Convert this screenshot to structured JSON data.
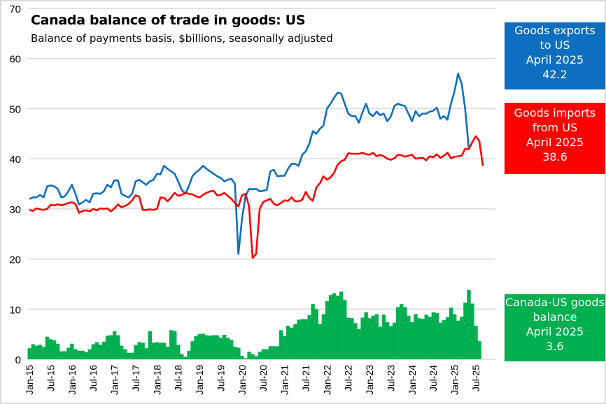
{
  "chart_data": {
    "type": "line+bar",
    "title": "Canada balance of trade in goods: US",
    "subtitle": "Balance of payments basis, $billions, seasonally adjusted",
    "xlabel": "",
    "ylabel": "",
    "ylim": [
      0,
      70
    ],
    "yticks": [
      0,
      10,
      20,
      30,
      40,
      50,
      60,
      70
    ],
    "grid": true,
    "x_start": "Jan-2015",
    "x_end": "Apr-2025",
    "xlim_months": [
      "Jan-2015",
      "Jul-2025"
    ],
    "xtick_labels": [
      "Jan-15",
      "Jul-15",
      "Jan-16",
      "Jul-16",
      "Jan-17",
      "Jul-17",
      "Jan-18",
      "Jul-18",
      "Jan-19",
      "Jul-19",
      "Jan-20",
      "Jul-20",
      "Jan-21",
      "Jul-21",
      "Jan-22",
      "Jul-22",
      "Jan-23",
      "Jul-23",
      "Jan-24",
      "Jul-24",
      "Jan-25",
      "Jul-25"
    ],
    "series": [
      {
        "name": "Goods exports to US",
        "type": "line",
        "color": "#0e6fc1",
        "values": [
          32.0,
          32.3,
          32.3,
          32.8,
          32.3,
          34.5,
          34.7,
          34.5,
          34.0,
          32.3,
          32.5,
          33.5,
          34.8,
          33.0,
          30.9,
          31.3,
          31.8,
          31.3,
          33.0,
          33.1,
          33.0,
          33.5,
          34.8,
          34.3,
          35.7,
          35.7,
          33.0,
          32.6,
          32.3,
          33.0,
          35.5,
          35.8,
          35.3,
          34.8,
          35.5,
          35.8,
          37.0,
          36.9,
          38.6,
          38.0,
          37.5,
          37.0,
          35.5,
          33.8,
          33.0,
          34.5,
          36.5,
          37.3,
          37.8,
          38.6,
          38.0,
          37.5,
          37.0,
          36.5,
          36.2,
          35.5,
          35.8,
          36.0,
          35.0,
          21.0,
          28.0,
          32.5,
          34.0,
          33.9,
          34.0,
          33.5,
          33.6,
          33.8,
          37.5,
          37.8,
          36.5,
          36.6,
          36.6,
          38.0,
          39.0,
          39.0,
          38.6,
          40.8,
          41.5,
          43.0,
          45.5,
          45.0,
          46.0,
          46.6,
          50.0,
          51.0,
          52.2,
          53.2,
          53.0,
          51.0,
          49.0,
          48.5,
          48.5,
          47.2,
          49.2,
          51.0,
          49.0,
          48.5,
          49.4,
          48.7,
          49.0,
          47.5,
          48.4,
          50.5,
          51.0,
          50.7,
          50.5,
          49.0,
          47.5,
          49.5,
          48.5,
          49.0,
          49.0,
          49.4,
          49.6,
          50.2,
          48.0,
          48.5,
          47.8,
          51.0,
          53.5,
          57.0,
          55.0,
          50.0,
          42.2
        ]
      },
      {
        "name": "Goods imports from US",
        "type": "line",
        "color": "#ff0000",
        "values": [
          29.8,
          29.6,
          30.1,
          29.9,
          29.8,
          30.0,
          30.8,
          30.7,
          30.9,
          30.7,
          30.9,
          31.2,
          31.3,
          31.0,
          29.2,
          29.6,
          29.7,
          29.5,
          30.0,
          29.7,
          30.1,
          30.0,
          30.1,
          29.5,
          30.1,
          30.9,
          30.3,
          30.6,
          31.0,
          31.7,
          32.7,
          32.4,
          29.8,
          29.8,
          29.9,
          29.8,
          30.0,
          32.3,
          32.2,
          31.5,
          32.3,
          33.2,
          32.6,
          32.8,
          33.2,
          33.0,
          32.9,
          32.5,
          32.3,
          32.8,
          33.2,
          33.5,
          33.6,
          32.7,
          32.8,
          33.2,
          32.6,
          32.0,
          31.2,
          30.5,
          32.7,
          33.0,
          30.5,
          20.2,
          21.0,
          30.0,
          31.4,
          31.7,
          32.0,
          31.0,
          30.7,
          31.2,
          31.7,
          31.6,
          32.3,
          31.5,
          31.5,
          31.8,
          33.4,
          32.2,
          31.6,
          34.3,
          35.1,
          36.5,
          35.8,
          36.3,
          37.2,
          38.8,
          39.5,
          39.8,
          41.1,
          41.0,
          41.0,
          41.0,
          41.2,
          40.9,
          40.8,
          41.2,
          40.5,
          40.8,
          40.5,
          40.0,
          39.8,
          40.1,
          40.8,
          40.7,
          40.4,
          40.6,
          40.8,
          40.0,
          40.1,
          40.2,
          39.7,
          40.5,
          40.3,
          40.9,
          40.2,
          40.6,
          41.2,
          40.1,
          40.4,
          40.5,
          40.6,
          42.0,
          41.9,
          43.3,
          44.5,
          43.5,
          38.6
        ]
      },
      {
        "name": "Canada-US goods balance",
        "type": "bar",
        "color": "#00b050",
        "values": [
          2.2,
          3.0,
          2.7,
          2.9,
          2.5,
          4.5,
          4.0,
          3.8,
          3.1,
          1.6,
          1.6,
          2.3,
          3.1,
          2.0,
          1.7,
          1.7,
          1.4,
          2.0,
          3.0,
          3.4,
          2.9,
          3.5,
          4.7,
          4.8,
          5.6,
          4.8,
          2.7,
          2.0,
          1.3,
          1.3,
          2.8,
          3.4,
          3.3,
          2.2,
          5.6,
          3.3,
          3.4,
          3.3,
          3.3,
          2.5,
          5.8,
          5.6,
          2.9,
          1.0,
          0.5,
          1.7,
          3.6,
          4.6,
          5.0,
          5.1,
          4.8,
          4.7,
          4.8,
          4.8,
          4.3,
          4.9,
          4.3,
          3.9,
          2.5,
          2.3,
          0.7,
          0.2,
          1.5,
          1.0,
          0.6,
          1.5,
          2.0,
          2.0,
          2.6,
          2.6,
          2.6,
          5.8,
          4.6,
          6.7,
          6.3,
          7.0,
          7.9,
          8.0,
          8.0,
          8.8,
          11.0,
          10.0,
          7.0,
          9.0,
          11.6,
          12.8,
          13.2,
          12.7,
          13.5,
          11.8,
          8.3,
          8.2,
          7.2,
          6.0,
          8.3,
          9.4,
          8.2,
          8.7,
          9.0,
          6.5,
          8.9,
          7.4,
          6.6,
          7.3,
          10.4,
          11.0,
          10.4,
          8.7,
          7.4,
          9.0,
          8.2,
          8.1,
          8.9,
          8.5,
          9.4,
          9.2,
          7.3,
          7.8,
          8.4,
          10.3,
          9.0,
          7.7,
          8.5,
          11.3,
          13.8,
          11.1,
          6.7,
          3.6
        ]
      }
    ],
    "annotations": [
      {
        "series": "Goods exports to US",
        "lines": [
          "Goods exports",
          "to US",
          "April 2025",
          "42.2"
        ]
      },
      {
        "series": "Goods imports from US",
        "lines": [
          "Goods imports",
          "from US",
          "April 2025",
          "38.6"
        ]
      },
      {
        "series": "Canada-US goods balance",
        "lines": [
          "Canada-US goods",
          "balance",
          "April 2025",
          "3.6"
        ]
      }
    ]
  }
}
